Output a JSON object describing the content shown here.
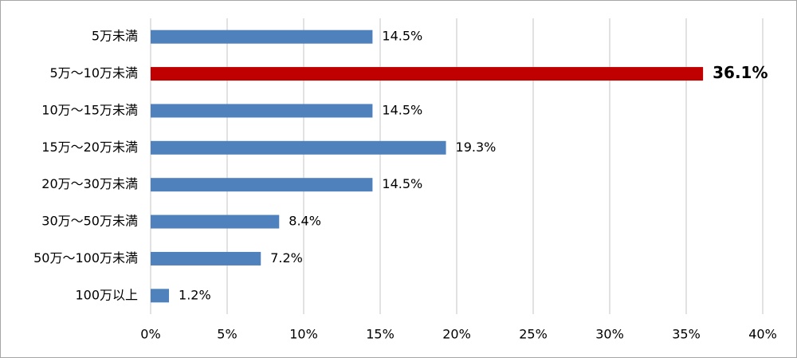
{
  "chart_data": {
    "type": "hbar",
    "categories": [
      "5万未満",
      "5万～10万未満",
      "10万～15万未満",
      "15万～20万未満",
      "20万～30万未満",
      "30万～50万未満",
      "50万～100万未満",
      "100万以上"
    ],
    "values": [
      14.5,
      36.1,
      14.5,
      19.3,
      14.5,
      8.4,
      7.2,
      1.2
    ],
    "value_labels": [
      "14.5%",
      "36.1%",
      "14.5%",
      "19.3%",
      "14.5%",
      "8.4%",
      "7.2%",
      "1.2%"
    ],
    "colors": [
      "#4f81bd",
      "#c00000",
      "#4f81bd",
      "#4f81bd",
      "#4f81bd",
      "#4f81bd",
      "#4f81bd",
      "#4f81bd"
    ],
    "highlight": 1,
    "xlim": [
      0,
      40
    ],
    "xticks": [
      {
        "value": 0,
        "label": "0%"
      },
      {
        "value": 5,
        "label": "5%"
      },
      {
        "value": 10,
        "label": "10%"
      },
      {
        "value": 15,
        "label": "15%"
      },
      {
        "value": 20,
        "label": "20%"
      },
      {
        "value": 25,
        "label": "25%"
      },
      {
        "value": 30,
        "label": "30%"
      },
      {
        "value": 35,
        "label": "35%"
      },
      {
        "value": 40,
        "label": "40%"
      }
    ],
    "grid": true
  }
}
